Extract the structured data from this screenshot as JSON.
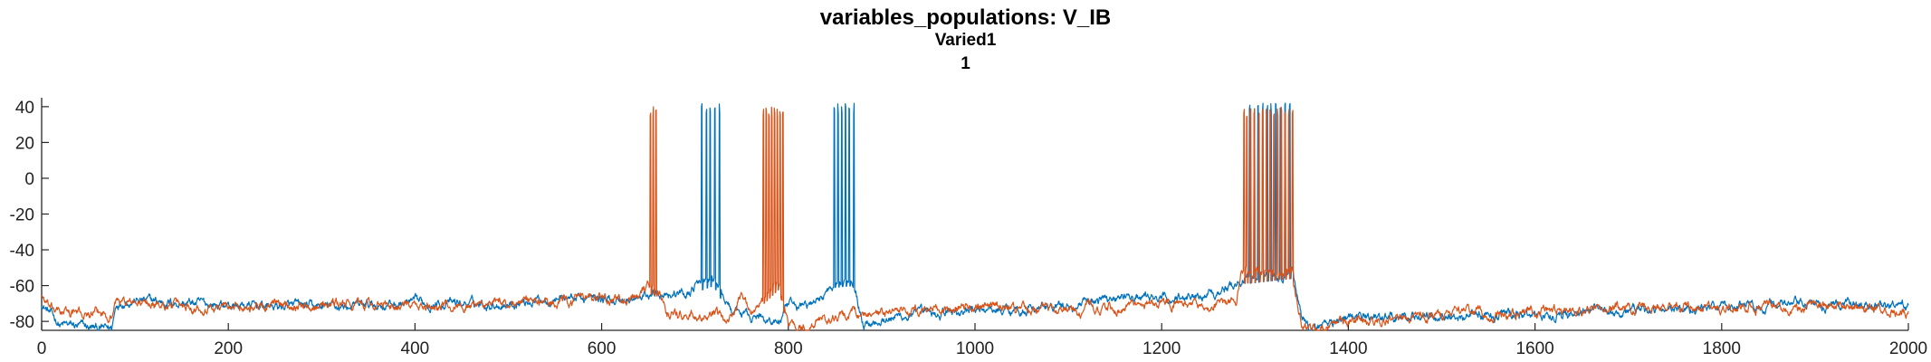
{
  "titles": {
    "title": "variables_populations: V_IB",
    "subtitle1": "Varied1",
    "subtitle2": "1"
  },
  "chart_data": {
    "type": "line",
    "title": "variables_populations: V_IB",
    "subtitle": [
      "Varied1",
      "1"
    ],
    "xlabel": "",
    "ylabel": "",
    "xlim": [
      0,
      2000
    ],
    "ylim": [
      -85,
      45
    ],
    "xticks": [
      0,
      200,
      400,
      600,
      800,
      1000,
      1200,
      1400,
      1600,
      1800,
      2000
    ],
    "yticks": [
      -80,
      -60,
      -40,
      -20,
      0,
      20,
      40
    ],
    "grid": false,
    "legend": "none",
    "series": [
      {
        "color": "#0072BD",
        "baseline": [
          [
            0,
            -70
          ],
          [
            20,
            -82
          ],
          [
            40,
            -83
          ],
          [
            60,
            -84
          ],
          [
            75,
            -84
          ],
          [
            80,
            -70
          ],
          [
            90,
            -68
          ],
          [
            200,
            -71
          ],
          [
            300,
            -72
          ],
          [
            400,
            -70
          ],
          [
            500,
            -70
          ],
          [
            560,
            -66
          ],
          [
            600,
            -68
          ],
          [
            640,
            -68
          ],
          [
            660,
            -63
          ],
          [
            690,
            -65
          ],
          [
            700,
            -60
          ],
          [
            720,
            -56
          ],
          [
            740,
            -75
          ],
          [
            770,
            -78
          ],
          [
            790,
            -80
          ],
          [
            800,
            -72
          ],
          [
            830,
            -70
          ],
          [
            850,
            -57
          ],
          [
            870,
            -56
          ],
          [
            880,
            -82
          ],
          [
            900,
            -78
          ],
          [
            1000,
            -74
          ],
          [
            1100,
            -72
          ],
          [
            1150,
            -66
          ],
          [
            1200,
            -68
          ],
          [
            1250,
            -64
          ],
          [
            1280,
            -60
          ],
          [
            1290,
            -55
          ],
          [
            1340,
            -52
          ],
          [
            1350,
            -80
          ],
          [
            1360,
            -84
          ],
          [
            1380,
            -80
          ],
          [
            1400,
            -78
          ],
          [
            1500,
            -77
          ],
          [
            1600,
            -76
          ],
          [
            1700,
            -74
          ],
          [
            1800,
            -72
          ],
          [
            1900,
            -70
          ],
          [
            2000,
            -72
          ]
        ],
        "spikes": [
          707,
          712,
          716,
          721,
          726,
          849,
          853,
          857,
          861,
          865,
          870,
          1294,
          1299,
          1303,
          1308,
          1313,
          1317,
          1322,
          1327,
          1332,
          1337
        ],
        "spike_peak": 42
      },
      {
        "color": "#D95319",
        "baseline": [
          [
            0,
            -65
          ],
          [
            10,
            -74
          ],
          [
            50,
            -76
          ],
          [
            75,
            -76
          ],
          [
            80,
            -68
          ],
          [
            100,
            -70
          ],
          [
            200,
            -72
          ],
          [
            300,
            -70
          ],
          [
            400,
            -72
          ],
          [
            500,
            -70
          ],
          [
            600,
            -68
          ],
          [
            640,
            -68
          ],
          [
            650,
            -60
          ],
          [
            660,
            -62
          ],
          [
            670,
            -75
          ],
          [
            700,
            -78
          ],
          [
            740,
            -78
          ],
          [
            750,
            -64
          ],
          [
            760,
            -74
          ],
          [
            770,
            -68
          ],
          [
            790,
            -58
          ],
          [
            800,
            -82
          ],
          [
            820,
            -84
          ],
          [
            840,
            -78
          ],
          [
            870,
            -76
          ],
          [
            900,
            -76
          ],
          [
            1000,
            -72
          ],
          [
            1100,
            -74
          ],
          [
            1200,
            -70
          ],
          [
            1250,
            -72
          ],
          [
            1280,
            -70
          ],
          [
            1285,
            -55
          ],
          [
            1340,
            -52
          ],
          [
            1350,
            -82
          ],
          [
            1360,
            -85
          ],
          [
            1400,
            -80
          ],
          [
            1500,
            -76
          ],
          [
            1600,
            -75
          ],
          [
            1700,
            -72
          ],
          [
            1800,
            -72
          ],
          [
            1900,
            -71
          ],
          [
            2000,
            -75
          ]
        ],
        "spikes": [
          652,
          655,
          658,
          773,
          776,
          779,
          782,
          785,
          788,
          791,
          794,
          1288,
          1291,
          1295,
          1299,
          1304,
          1308,
          1312,
          1316,
          1320,
          1324,
          1328,
          1332,
          1336,
          1340
        ],
        "spike_peak": 40
      }
    ]
  }
}
